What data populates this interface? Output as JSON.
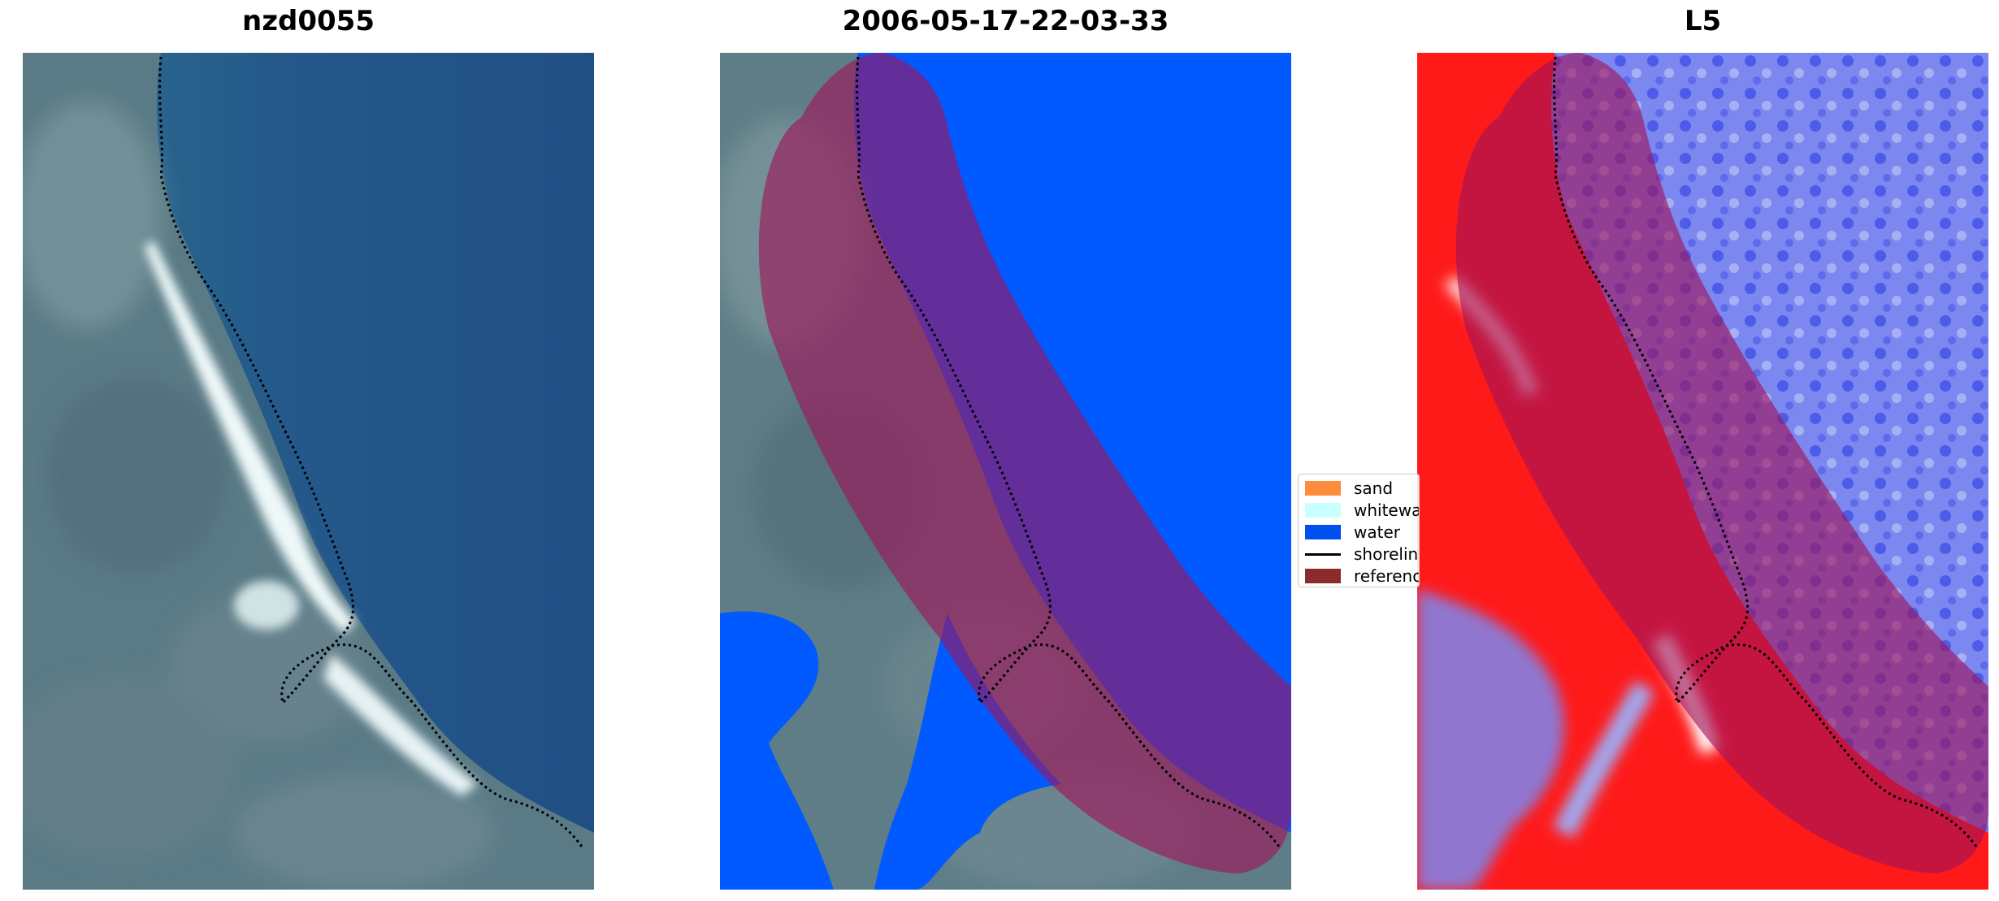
{
  "panels": [
    {
      "title": "nzd0055",
      "image": "satellite-rgb-coastline"
    },
    {
      "title": "2006-05-17-22-03-33",
      "image": "classified-coastline"
    },
    {
      "title": "L5",
      "image": "index-heatmap-coastline"
    }
  ],
  "legend": {
    "items": [
      {
        "label": "sand",
        "color": "#ff8c3a",
        "kind": "patch"
      },
      {
        "label": "whitewater",
        "color": "#c8ffff",
        "kind": "patch"
      },
      {
        "label": "water",
        "color": "#0050f0",
        "kind": "patch"
      },
      {
        "label": "shoreline",
        "color": "#000000",
        "kind": "line"
      },
      {
        "label": "reference",
        "color": "#8b2b2b",
        "kind": "patch"
      }
    ]
  },
  "colors": {
    "sea": "#245a8a",
    "land": "#5a7a88",
    "foam": "#e8f4f4",
    "class_water": "#005aff",
    "buffer": "#b0155a",
    "heat_land": "#ff1a1a",
    "heat_water": "#6a7ae8"
  }
}
